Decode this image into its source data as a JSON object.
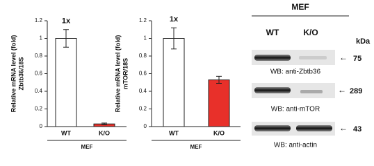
{
  "chart_data": [
    {
      "type": "bar",
      "ylabel": [
        "Relative mRNA level (fold)",
        "Zbtb36/18S"
      ],
      "annotation": "1x",
      "categories": [
        "WT",
        "K/O"
      ],
      "values": [
        1,
        0.03
      ],
      "errors": [
        0.1,
        0.01
      ],
      "colors": [
        "#ffffff",
        "#e8302a"
      ],
      "group_label": "MEF",
      "ylim": [
        0,
        1.2
      ],
      "yticks": [
        0,
        0.2,
        0.4,
        0.6,
        0.8,
        1,
        1.2
      ]
    },
    {
      "type": "bar",
      "ylabel": [
        "Relative mRNA level (fold)",
        "mTOR/18S"
      ],
      "annotation": "1x",
      "categories": [
        "WT",
        "K/O"
      ],
      "values": [
        1,
        0.53
      ],
      "errors": [
        0.12,
        0.04
      ],
      "colors": [
        "#ffffff",
        "#e8302a"
      ],
      "group_label": "MEF",
      "ylim": [
        0,
        1.2
      ],
      "yticks": [
        0,
        0.2,
        0.4,
        0.6,
        0.8,
        1,
        1.2
      ]
    }
  ],
  "blot": {
    "title": "MEF",
    "lanes": [
      "WT",
      "K/O"
    ],
    "unit": "kDa",
    "rows": [
      {
        "label": "WB: anti-Zbtb36",
        "marker": "75"
      },
      {
        "label": "WB: anti-mTOR",
        "marker": "289"
      },
      {
        "label": "WB: anti-actin",
        "marker": "43"
      }
    ]
  }
}
